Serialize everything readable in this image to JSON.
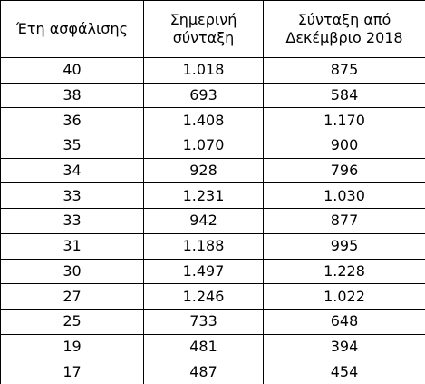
{
  "table": {
    "header": [
      [
        "Έτη ασφάλισης"
      ],
      [
        "Σημερινή",
        "σύνταξη"
      ],
      [
        "Σύνταξη από",
        "Δεκέμβριο 2018"
      ]
    ],
    "rows": [
      [
        "40",
        "1.018",
        "875"
      ],
      [
        "38",
        "693",
        "584"
      ],
      [
        "36",
        "1.408",
        "1.170"
      ],
      [
        "35",
        "1.070",
        "900"
      ],
      [
        "34",
        "928",
        "796"
      ],
      [
        "33",
        "1.231",
        "1.030"
      ],
      [
        "33",
        "942",
        "877"
      ],
      [
        "31",
        "1.188",
        "995"
      ],
      [
        "30",
        "1.497",
        "1.228"
      ],
      [
        "27",
        "1.246",
        "1.022"
      ],
      [
        "25",
        "733",
        "648"
      ],
      [
        "19",
        "481",
        "394"
      ],
      [
        "17",
        "487",
        "454"
      ]
    ]
  }
}
